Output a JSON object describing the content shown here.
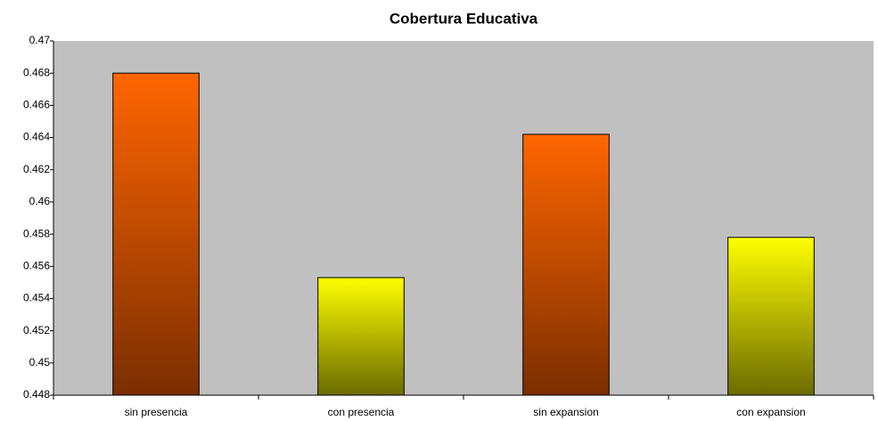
{
  "chart_data": {
    "type": "bar",
    "title": "Cobertura Educativa",
    "categories": [
      "sin presencia",
      "con presencia",
      "sin expansion",
      "con expansion"
    ],
    "values": [
      0.468,
      0.4553,
      0.4642,
      0.4578
    ],
    "colors": [
      "#ff6600",
      "#ffff00",
      "#ff6600",
      "#ffff00"
    ],
    "gradient_colors": [
      "#7a2e00",
      "#6b6b00",
      "#7a2e00",
      "#6b6b00"
    ],
    "ylim": [
      0.448,
      0.47
    ],
    "yticks": [
      0.448,
      0.45,
      0.452,
      0.454,
      0.456,
      0.458,
      0.46,
      0.462,
      0.464,
      0.466,
      0.468,
      0.47
    ],
    "grid": false
  }
}
